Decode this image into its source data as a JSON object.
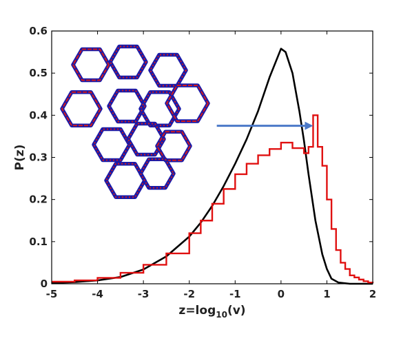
{
  "chart_data": {
    "type": "line",
    "title": "",
    "xlabel": "z=log",
    "xlabel_sub": "10",
    "xlabel_tail": "(v)",
    "ylabel": "P(z)",
    "xlim": [
      -5,
      2
    ],
    "ylim": [
      0,
      0.6
    ],
    "x_ticks": [
      "-5",
      "-4",
      "-3",
      "-2",
      "-1",
      "0",
      "1",
      "2"
    ],
    "y_ticks": [
      "0",
      "0.1",
      "0.2",
      "0.3",
      "0.4",
      "0.5",
      "0.6"
    ],
    "grid": false,
    "legend": "none",
    "series": [
      {
        "kind": "curve",
        "color": "#000000",
        "x": [
          -5,
          -4.5,
          -4,
          -3.5,
          -3,
          -2.5,
          -2,
          -1.75,
          -1.5,
          -1.25,
          -1,
          -0.75,
          -0.5,
          -0.25,
          0,
          0.1,
          0.25,
          0.4,
          0.5,
          0.6,
          0.75,
          0.9,
          1.0,
          1.1,
          1.25,
          1.5,
          2
        ],
        "y": [
          0.002,
          0.004,
          0.008,
          0.016,
          0.034,
          0.065,
          0.112,
          0.145,
          0.185,
          0.232,
          0.285,
          0.343,
          0.41,
          0.49,
          0.558,
          0.55,
          0.5,
          0.41,
          0.34,
          0.26,
          0.15,
          0.07,
          0.035,
          0.012,
          0.003,
          0.0,
          0.0
        ]
      },
      {
        "kind": "step",
        "color": "#e01010",
        "x": [
          -5,
          -4.5,
          -4,
          -3.5,
          -3,
          -2.5,
          -2,
          -1.75,
          -1.5,
          -1.25,
          -1,
          -0.75,
          -0.5,
          -0.25,
          0,
          0.25,
          0.5,
          0.6,
          0.7,
          0.8,
          0.9,
          1.0,
          1.1,
          1.2,
          1.3,
          1.4,
          1.5,
          1.6,
          1.7,
          1.8,
          1.9,
          2
        ],
        "y": [
          0.005,
          0.008,
          0.014,
          0.026,
          0.045,
          0.072,
          0.12,
          0.15,
          0.19,
          0.225,
          0.26,
          0.285,
          0.305,
          0.32,
          0.335,
          0.322,
          0.31,
          0.325,
          0.4,
          0.325,
          0.28,
          0.2,
          0.13,
          0.08,
          0.05,
          0.035,
          0.02,
          0.015,
          0.01,
          0.006,
          0.003,
          0.002
        ]
      }
    ],
    "annotation": {
      "type": "arrow",
      "color": "#4a78c8",
      "from": [
        -1.4,
        0.375
      ],
      "to": [
        0.55,
        0.375
      ]
    },
    "inset": {
      "type": "honeycomb-network-icon",
      "colors": [
        "#1a1aa8",
        "#d41a1a"
      ]
    }
  }
}
